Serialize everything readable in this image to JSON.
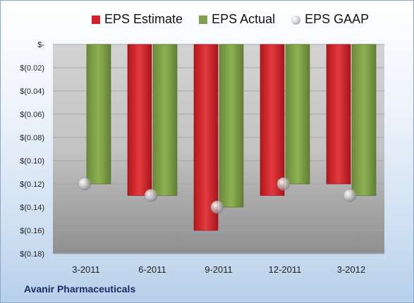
{
  "chart_data": {
    "type": "bar",
    "categories": [
      "3-2011",
      "6-2011",
      "9-2011",
      "12-2011",
      "3-2012"
    ],
    "series": [
      {
        "name": "EPS Estimate",
        "color": "#d42026",
        "values": [
          null,
          -0.13,
          -0.16,
          -0.13,
          -0.12
        ]
      },
      {
        "name": "EPS Actual",
        "color": "#7fa04a",
        "values": [
          -0.12,
          -0.13,
          -0.14,
          -0.12,
          -0.13
        ]
      },
      {
        "name": "EPS GAAP",
        "marker": "sphere",
        "values": [
          -0.12,
          -0.13,
          -0.14,
          -0.12,
          -0.13
        ]
      }
    ],
    "ylim": [
      -0.18,
      0
    ],
    "yticks": [
      {
        "value": 0,
        "label": "$-"
      },
      {
        "value": -0.02,
        "label": "$(0.02)"
      },
      {
        "value": -0.04,
        "label": "$(0.04)"
      },
      {
        "value": -0.06,
        "label": "$(0.06)"
      },
      {
        "value": -0.08,
        "label": "$(0.08)"
      },
      {
        "value": -0.1,
        "label": "$(0.10)"
      },
      {
        "value": -0.12,
        "label": "$(0.12)"
      },
      {
        "value": -0.14,
        "label": "$(0.14)"
      },
      {
        "value": -0.16,
        "label": "$(0.16)"
      },
      {
        "value": -0.18,
        "label": "$(0.18)"
      }
    ],
    "legend_position": "top",
    "grid": true
  },
  "footer": {
    "company": "Avanir Pharmaceuticals"
  }
}
